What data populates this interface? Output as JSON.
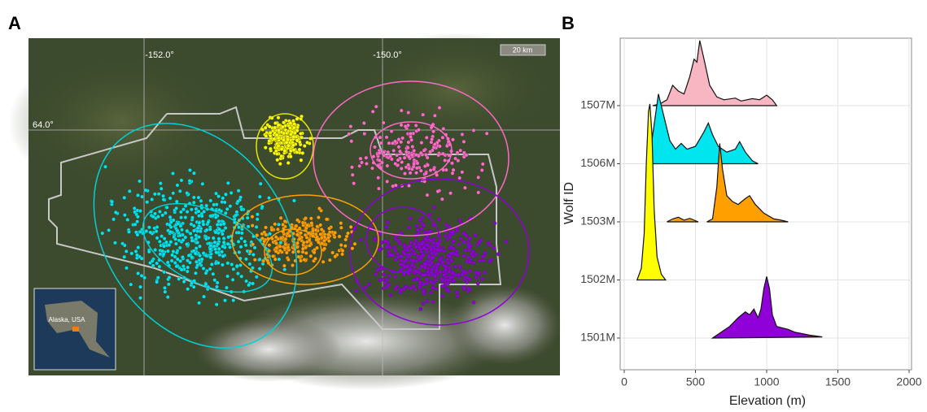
{
  "panel_labels": [
    "A",
    "B"
  ],
  "map": {
    "lon_labels": [
      "-152.0°",
      "-150.0°"
    ],
    "lat_label": "64.0°",
    "scale_bar": "20 km",
    "inset_label": "Alaska, USA"
  },
  "chart_data": {
    "type": "ridgeline",
    "xlabel": "Elevation (m)",
    "ylabel": "Wolf ID",
    "xlim": [
      0,
      2000
    ],
    "xticks": [
      0,
      500,
      1000,
      1500,
      2000
    ],
    "grid": true,
    "series": [
      {
        "name": "1507M",
        "color": "#f7b6c2",
        "x": [
          200,
          250,
          300,
          340,
          380,
          420,
          460,
          490,
          510,
          530,
          560,
          600,
          650,
          700,
          780,
          820,
          900,
          950,
          1000,
          1040,
          1070
        ],
        "values": [
          0,
          0.03,
          0.1,
          0.35,
          0.25,
          0.2,
          0.5,
          0.8,
          0.75,
          1.12,
          0.8,
          0.35,
          0.15,
          0.1,
          0.13,
          0.08,
          0.12,
          0.1,
          0.18,
          0.1,
          0
        ]
      },
      {
        "name": "1506M",
        "color": "#00e5ee",
        "x": [
          170,
          200,
          240,
          280,
          320,
          360,
          400,
          440,
          500,
          560,
          590,
          620,
          660,
          720,
          780,
          810,
          850,
          900,
          940
        ],
        "values": [
          0,
          0.5,
          1.2,
          0.8,
          0.4,
          0.25,
          0.35,
          0.25,
          0.3,
          0.55,
          0.7,
          0.5,
          0.3,
          0.2,
          0.25,
          0.38,
          0.2,
          0.05,
          0
        ]
      },
      {
        "name": "1503M",
        "color": "#ffa000",
        "x": [
          300,
          340,
          380,
          420,
          460,
          520,
          550,
          580,
          620,
          650,
          670,
          690,
          720,
          760,
          800,
          850,
          880,
          920,
          980,
          1050,
          1100,
          1150
        ],
        "values": [
          0,
          0.05,
          0.08,
          0.03,
          0.06,
          0,
          null,
          0,
          0.05,
          0.6,
          1.35,
          0.9,
          0.45,
          0.35,
          0.3,
          0.4,
          0.45,
          0.3,
          0.15,
          0.05,
          0.03,
          0
        ]
      },
      {
        "name": "1502M",
        "color": "#ffff00",
        "x": [
          90,
          120,
          140,
          155,
          170,
          180,
          195,
          210,
          230,
          260,
          290
        ],
        "values": [
          0,
          0.2,
          0.8,
          2.0,
          2.9,
          3.03,
          2.5,
          1.2,
          0.4,
          0.1,
          0
        ]
      },
      {
        "name": "1501M",
        "color": "#9000d8",
        "x": [
          620,
          680,
          740,
          800,
          850,
          880,
          910,
          940,
          960,
          980,
          1000,
          1020,
          1040,
          1070,
          1100,
          1150,
          1200,
          1300,
          1390
        ],
        "values": [
          0,
          0.1,
          0.2,
          0.35,
          0.45,
          0.4,
          0.5,
          0.35,
          0.5,
          0.85,
          1.06,
          0.85,
          0.4,
          0.2,
          0.18,
          0.15,
          0.1,
          0.05,
          0.02
        ]
      }
    ]
  }
}
